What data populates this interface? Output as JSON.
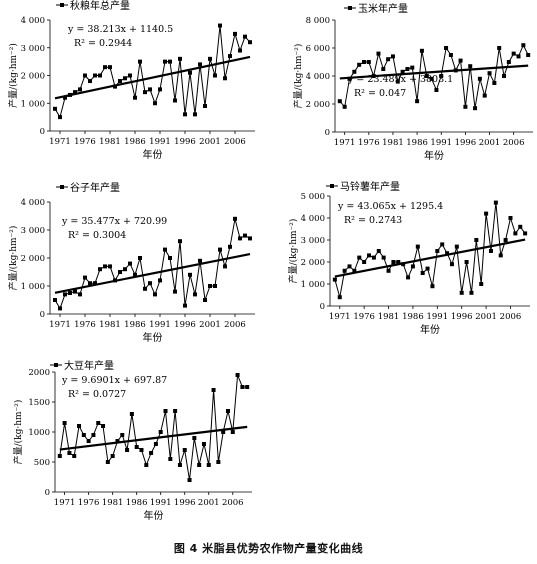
{
  "figure": {
    "caption": "图 4   米脂县优势农作物产量变化曲线"
  },
  "chart_data": [
    {
      "type": "line",
      "legend": "秋粮年总产量",
      "equation": "y = 38.213x + 1140.5",
      "r2": "R² = 0.2944",
      "ylabel": "产量/(kg·hm⁻²)",
      "xlabel": "年份",
      "xticks": [
        "1971",
        "1976",
        "1981",
        "1986",
        "1991",
        "1996",
        "2001",
        "2006"
      ],
      "yticks": [
        "0",
        "1 000",
        "2 000",
        "3 000",
        "4 000"
      ],
      "ylim": [
        0,
        4000
      ],
      "x": [
        1970,
        1971,
        1972,
        1973,
        1974,
        1975,
        1976,
        1977,
        1978,
        1979,
        1980,
        1981,
        1982,
        1983,
        1984,
        1985,
        1986,
        1987,
        1988,
        1989,
        1990,
        1991,
        1992,
        1993,
        1994,
        1995,
        1996,
        1997,
        1998,
        1999,
        2000,
        2001,
        2002,
        2003,
        2004,
        2005,
        2006,
        2007,
        2008,
        2009
      ],
      "values": [
        800,
        500,
        1200,
        1300,
        1400,
        1500,
        2000,
        1800,
        2000,
        2000,
        2300,
        2300,
        1600,
        1800,
        1900,
        2000,
        1200,
        2500,
        1400,
        1500,
        1000,
        1500,
        2500,
        2500,
        1100,
        2600,
        600,
        2100,
        600,
        2400,
        900,
        2600,
        2000,
        3800,
        1900,
        2700,
        3500,
        2900,
        3400,
        3200
      ],
      "trend": {
        "slope": 38.213,
        "intercept": 1140.5
      }
    },
    {
      "type": "line",
      "legend": "玉米年产量",
      "equation": "y = 23.489x + 3803.1",
      "r2": "R² = 0.047",
      "ylabel": "产量/(kg·hm⁻²)",
      "xlabel": "年份",
      "xticks": [
        "1971",
        "1976",
        "1981",
        "1986",
        "1991",
        "1996",
        "2001",
        "2006"
      ],
      "yticks": [
        "0",
        "2 000",
        "4 000",
        "6 000",
        "8 000"
      ],
      "ylim": [
        0,
        8000
      ],
      "x": [
        1970,
        1971,
        1972,
        1973,
        1974,
        1975,
        1976,
        1977,
        1978,
        1979,
        1980,
        1981,
        1982,
        1983,
        1984,
        1985,
        1986,
        1987,
        1988,
        1989,
        1990,
        1991,
        1992,
        1993,
        1994,
        1995,
        1996,
        1997,
        1998,
        1999,
        2000,
        2001,
        2002,
        2003,
        2004,
        2005,
        2006,
        2007,
        2008,
        2009
      ],
      "values": [
        2200,
        1800,
        3800,
        4300,
        4800,
        5000,
        5000,
        4000,
        5600,
        4500,
        5200,
        5400,
        3600,
        4300,
        4500,
        4600,
        2200,
        5800,
        4000,
        3800,
        3000,
        4000,
        6000,
        5500,
        4400,
        5100,
        1800,
        4700,
        1700,
        3800,
        2600,
        4200,
        3500,
        6000,
        4000,
        5000,
        5600,
        5400,
        6200,
        5500
      ],
      "trend": {
        "slope": 23.489,
        "intercept": 3803.1
      }
    },
    {
      "type": "line",
      "legend": "谷子年产量",
      "equation": "y = 35.477x + 720.99",
      "r2": "R² = 0.3004",
      "ylabel": "产量/(kg·hm⁻²)",
      "xlabel": "年份",
      "xticks": [
        "1971",
        "1976",
        "1981",
        "1986",
        "1991",
        "1996",
        "2001",
        "2006"
      ],
      "yticks": [
        "0",
        "1 000",
        "2 000",
        "3 000",
        "4 000"
      ],
      "ylim": [
        0,
        4000
      ],
      "x": [
        1970,
        1971,
        1972,
        1973,
        1974,
        1975,
        1976,
        1977,
        1978,
        1979,
        1980,
        1981,
        1982,
        1983,
        1984,
        1985,
        1986,
        1987,
        1988,
        1989,
        1990,
        1991,
        1992,
        1993,
        1994,
        1995,
        1996,
        1997,
        1998,
        1999,
        2000,
        2001,
        2002,
        2003,
        2004,
        2005,
        2006,
        2007,
        2008,
        2009
      ],
      "values": [
        500,
        200,
        700,
        750,
        800,
        700,
        1300,
        1100,
        1100,
        1600,
        1700,
        1700,
        1200,
        1500,
        1600,
        1800,
        1400,
        2000,
        900,
        1100,
        700,
        1200,
        2300,
        2000,
        800,
        2600,
        300,
        1400,
        700,
        1900,
        500,
        1000,
        1000,
        2300,
        1700,
        2400,
        3400,
        2700,
        2800,
        2700
      ],
      "trend": {
        "slope": 35.477,
        "intercept": 720.99
      }
    },
    {
      "type": "line",
      "legend": "马铃薯年产量",
      "equation": "y = 43.065x + 1295.4",
      "r2": "R² = 0.2743",
      "ylabel": "产量/(kg·hm⁻²)",
      "xlabel": "年份",
      "xticks": [
        "1971",
        "1976",
        "1981",
        "1986",
        "1991",
        "1996",
        "2001",
        "2006"
      ],
      "yticks": [
        "0",
        "1 000",
        "2 000",
        "3 000",
        "4 000",
        "5 000"
      ],
      "ylim": [
        0,
        5000
      ],
      "x": [
        1970,
        1971,
        1972,
        1973,
        1974,
        1975,
        1976,
        1977,
        1978,
        1979,
        1980,
        1981,
        1982,
        1983,
        1984,
        1985,
        1986,
        1987,
        1988,
        1989,
        1990,
        1991,
        1992,
        1993,
        1994,
        1995,
        1996,
        1997,
        1998,
        1999,
        2000,
        2001,
        2002,
        2003,
        2004,
        2005,
        2006,
        2007,
        2008,
        2009
      ],
      "values": [
        1200,
        400,
        1600,
        1800,
        1600,
        2200,
        2000,
        2300,
        2200,
        2500,
        2200,
        1600,
        2000,
        2000,
        1900,
        1300,
        1800,
        2700,
        1500,
        1700,
        900,
        2500,
        2800,
        2400,
        1900,
        2700,
        600,
        2000,
        600,
        3000,
        1000,
        4200,
        2500,
        4700,
        2300,
        3000,
        4000,
        3300,
        3600,
        3300
      ],
      "trend": {
        "slope": 43.065,
        "intercept": 1295.4
      }
    },
    {
      "type": "line",
      "legend": "大豆年产量",
      "equation": "y = 9.6901x + 697.87",
      "r2": "R² = 0.0727",
      "ylabel": "产量/(kg·hm⁻²)",
      "xlabel": "年份",
      "xticks": [
        "1971",
        "1976",
        "1981",
        "1986",
        "1991",
        "1996",
        "2001",
        "2006"
      ],
      "yticks": [
        "0",
        "500",
        "1000",
        "1500",
        "2000"
      ],
      "ylim": [
        0,
        2000
      ],
      "x": [
        1970,
        1971,
        1972,
        1973,
        1974,
        1975,
        1976,
        1977,
        1978,
        1979,
        1980,
        1981,
        1982,
        1983,
        1984,
        1985,
        1986,
        1987,
        1988,
        1989,
        1990,
        1991,
        1992,
        1993,
        1994,
        1995,
        1996,
        1997,
        1998,
        1999,
        2000,
        2001,
        2002,
        2003,
        2004,
        2005,
        2006,
        2007,
        2008,
        2009
      ],
      "values": [
        600,
        1150,
        650,
        600,
        1100,
        950,
        850,
        950,
        1150,
        1100,
        500,
        600,
        850,
        950,
        700,
        1300,
        750,
        700,
        450,
        650,
        800,
        1000,
        1350,
        550,
        1350,
        450,
        700,
        200,
        900,
        450,
        800,
        450,
        1700,
        500,
        1000,
        1350,
        1000,
        1950,
        1750,
        1750
      ],
      "trend": {
        "slope": 9.6901,
        "intercept": 697.87
      }
    }
  ]
}
